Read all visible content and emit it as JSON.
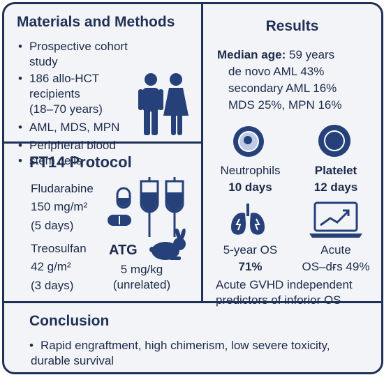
{
  "materials": {
    "title": "Materials and Methods",
    "bullets": [
      "Prospective cohort study",
      "186 allo-HCT recipients",
      "(18–70 years)",
      "AML, MDS, MPN",
      "Peripheral blood",
      "stem cells"
    ]
  },
  "protocol": {
    "title": "FT14 Protocol",
    "flu_name": "Fludarabine",
    "flu_dose": "150 mg/m²",
    "flu_days": "(5 days)",
    "treo_name": "Treosulfan",
    "treo_dose": "42 g/m²",
    "treo_days": "(3 days)",
    "atg_name": "ATG",
    "atg_dose": "5 mg/kg",
    "atg_note": "(unrelated)"
  },
  "results": {
    "title": "Results",
    "median_label": "Median age:",
    "median_value": "59 years",
    "line1": "de novo AML 43%",
    "line2": "secondary AML 16%",
    "line3": "MDS 25%, MPN 16%",
    "neutro_label": "Neutrophils",
    "neutro_value": "10 days",
    "plate_label": "Platelet",
    "plate_value": "12 days",
    "os_label": "5-year OS",
    "os_value": "71%",
    "acute_label": "Acute",
    "acute_value": "OS–dғs 49%",
    "footer1": "Acute GVHD independent",
    "footer2": "predictors of inforior OS"
  },
  "conclusion": {
    "title": "Conclusion",
    "line1": "Rapid engraftment, high chimerism, low severe toxicity,",
    "line2": "durable survival"
  },
  "colors": {
    "navy": "#1f3157",
    "icon": "#26407a",
    "background": "#f3f4f7"
  },
  "icons": [
    "people-icon",
    "pill-icon",
    "iv-bag-icon",
    "rabbit-icon",
    "neutrophil-cell-icon",
    "platelet-icon",
    "lungs-icon",
    "laptop-chart-icon"
  ]
}
